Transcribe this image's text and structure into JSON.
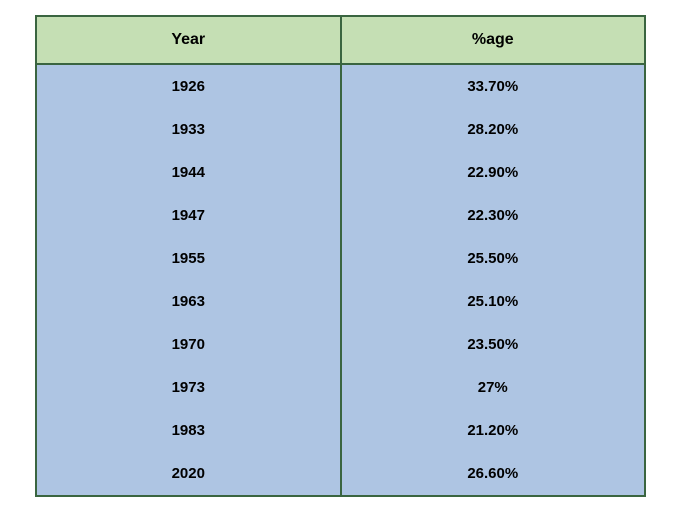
{
  "table": {
    "type": "table",
    "columns": [
      "Year",
      "%age"
    ],
    "rows": [
      [
        "1926",
        "33.70%"
      ],
      [
        "1933",
        "28.20%"
      ],
      [
        "1944",
        "22.90%"
      ],
      [
        "1947",
        "22.30%"
      ],
      [
        "1955",
        "25.50%"
      ],
      [
        "1963",
        "25.10%"
      ],
      [
        "1970",
        "23.50%"
      ],
      [
        "1973",
        "27%"
      ],
      [
        "1983",
        "21.20%"
      ],
      [
        "2020",
        "26.60%"
      ]
    ],
    "header_background_color": "#c5dfb4",
    "body_background_color": "#aec5e3",
    "border_color": "#3a6540",
    "text_color": "#000000",
    "header_fontsize": 16,
    "body_fontsize": 15,
    "font_weight": "bold"
  }
}
